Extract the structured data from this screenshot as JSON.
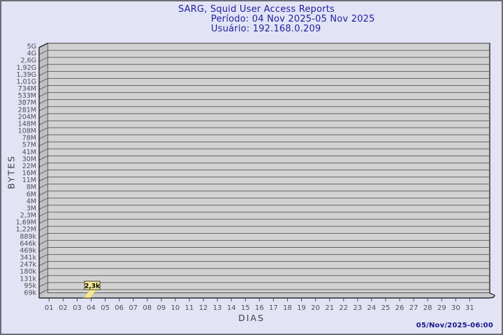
{
  "header": {
    "title": "SARG, Squid User Access Reports",
    "period": "Período: 04 Nov 2025-05 Nov 2025",
    "user": "Usuário: 192.168.0.209"
  },
  "footer": {
    "timestamp": "05/Nov/2025-06:00"
  },
  "chart_data": {
    "type": "bar",
    "title": "SARG, Squid User Access Reports",
    "subtitle_lines": [
      "Período: 04 Nov 2025-05 Nov 2025",
      "Usuário: 192.168.0.209"
    ],
    "xlabel": "DIAS",
    "ylabel": "BYTES",
    "scale": "logarithmic",
    "grid": true,
    "x_categories": [
      "01",
      "02",
      "03",
      "04",
      "05",
      "06",
      "07",
      "08",
      "09",
      "10",
      "11",
      "12",
      "13",
      "14",
      "15",
      "16",
      "17",
      "18",
      "19",
      "20",
      "21",
      "22",
      "23",
      "24",
      "25",
      "26",
      "27",
      "28",
      "29",
      "30",
      "31"
    ],
    "y_tick_labels": [
      "5G",
      "4G",
      "2,6G",
      "1,92G",
      "1,39G",
      "1,01G",
      "734M",
      "533M",
      "387M",
      "281M",
      "204M",
      "148M",
      "108M",
      "78M",
      "57M",
      "41M",
      "30M",
      "22M",
      "16M",
      "11M",
      "8M",
      "6M",
      "4M",
      "3M",
      "2,3M",
      "1,69M",
      "1,22M",
      "889k",
      "646k",
      "469k",
      "341k",
      "247k",
      "180k",
      "131k",
      "95k",
      "69k"
    ],
    "y_range_bytes": [
      69000,
      5000000000
    ],
    "bars": [
      {
        "day": "04",
        "value_label": "2,3k",
        "value_bytes": 2300
      }
    ],
    "colors": {
      "page_bg": "#e3e3f6",
      "page_border": "#6c6c75",
      "plot_bg": "#d2d2d2",
      "wall": "#bfbfc4",
      "floor": "#c9c9cd",
      "gridline": "#646464",
      "plot_border": "#0a0a0a",
      "tick_text": "#4f4f4f",
      "title_text": "#1e1e9c",
      "bar_fill": "#f4e795",
      "bar_edge": "#cdb957",
      "annotation_bg": "#f3ea9c",
      "annotation_border": "#3f3f25",
      "annotation_text": "#000000"
    }
  }
}
